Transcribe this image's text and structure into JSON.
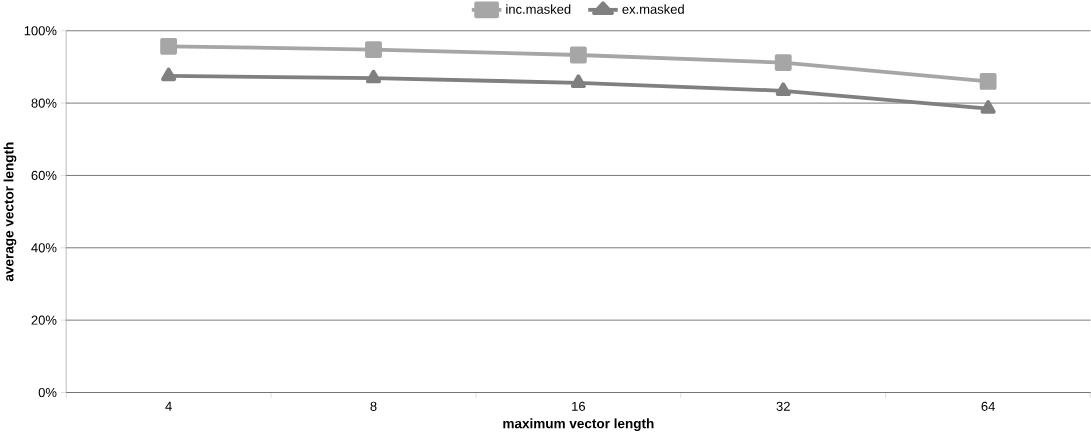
{
  "chart_data": {
    "type": "line",
    "xlabel": "maximum vector length",
    "ylabel": "average vector length",
    "categories": [
      "4",
      "8",
      "16",
      "32",
      "64"
    ],
    "series": [
      {
        "name": "inc.masked",
        "color": "#a6a6a6",
        "marker": "square",
        "values": [
          95.7,
          94.8,
          93.3,
          91.2,
          86.0
        ]
      },
      {
        "name": "ex.masked",
        "color": "#808080",
        "marker": "triangle",
        "values": [
          87.5,
          86.9,
          85.6,
          83.4,
          78.5
        ]
      }
    ],
    "ylim": [
      0,
      100
    ],
    "yticks": [
      {
        "value": 0,
        "label": "0%"
      },
      {
        "value": 20,
        "label": "20%"
      },
      {
        "value": 40,
        "label": "40%"
      },
      {
        "value": 60,
        "label": "60%"
      },
      {
        "value": 80,
        "label": "80%"
      },
      {
        "value": 100,
        "label": "100%"
      }
    ],
    "grid": "y",
    "legend": "top",
    "line_style": "solid"
  }
}
